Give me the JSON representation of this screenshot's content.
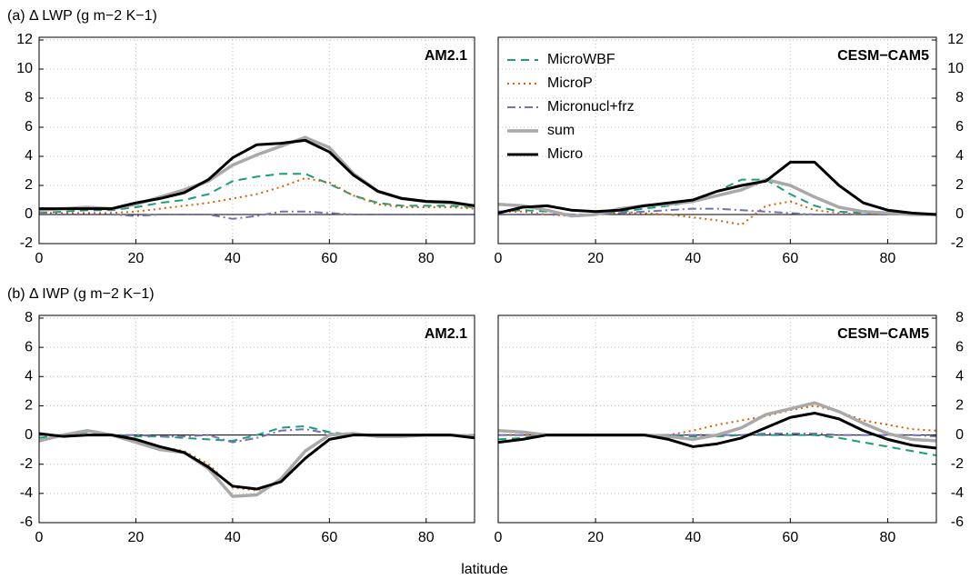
{
  "figure": {
    "xlabel": "latitude"
  },
  "chart_data": [
    {
      "type": "line",
      "title": "(a) Δ LWP (g m−2 K−1)",
      "label": "AM2.1",
      "yaxis_side": "left",
      "grid": true,
      "xlim": [
        0,
        90
      ],
      "xticks": [
        0,
        20,
        40,
        60,
        80
      ],
      "ylim": [
        -2,
        12
      ],
      "yticks": [
        -2,
        0,
        2,
        4,
        6,
        8,
        10,
        12
      ],
      "x": [
        0,
        5,
        10,
        15,
        20,
        25,
        30,
        35,
        40,
        45,
        50,
        55,
        60,
        65,
        70,
        75,
        80,
        85,
        90
      ],
      "series": [
        {
          "name": "MicroWBF",
          "color": "#1b9e77",
          "linestyle": "dashed",
          "width": 2,
          "values": [
            0.1,
            0.2,
            0.3,
            0.3,
            0.5,
            0.8,
            1.0,
            1.4,
            2.3,
            2.6,
            2.8,
            2.8,
            2.1,
            1.3,
            0.8,
            0.6,
            0.6,
            0.6,
            0.5
          ]
        },
        {
          "name": "MicroP",
          "color": "#d95f02",
          "linestyle": "dotted",
          "width": 2,
          "values": [
            0.1,
            0.1,
            0.1,
            0.1,
            0.2,
            0.4,
            0.6,
            0.8,
            1.1,
            1.4,
            1.9,
            2.5,
            2.2,
            1.3,
            0.7,
            0.5,
            0.5,
            0.5,
            0.4
          ]
        },
        {
          "name": "Micronucl+frz",
          "color": "#7570b3",
          "linestyle": "dashdot",
          "width": 2,
          "values": [
            0.0,
            0.0,
            0.0,
            0.0,
            -0.1,
            0.0,
            0.0,
            0.0,
            -0.3,
            -0.1,
            0.2,
            0.2,
            0.1,
            0.0,
            0.0,
            0.0,
            0.0,
            0.0,
            0.0
          ]
        },
        {
          "name": "sum",
          "color": "#a9a9a9",
          "linestyle": "solid",
          "width": 3.5,
          "values": [
            0.3,
            0.4,
            0.5,
            0.4,
            0.7,
            1.2,
            1.7,
            2.3,
            3.4,
            4.1,
            4.7,
            5.3,
            4.6,
            2.8,
            1.6,
            1.1,
            0.9,
            0.8,
            0.6
          ]
        },
        {
          "name": "Micro",
          "color": "#000000",
          "linestyle": "solid",
          "width": 3,
          "values": [
            0.4,
            0.4,
            0.4,
            0.4,
            0.8,
            1.1,
            1.5,
            2.4,
            3.9,
            4.8,
            4.9,
            5.1,
            4.3,
            2.7,
            1.6,
            1.1,
            0.9,
            0.85,
            0.6
          ]
        }
      ]
    },
    {
      "type": "line",
      "label": "CESM−CAM5",
      "yaxis_side": "right",
      "grid": true,
      "legend": "upper left",
      "xlim": [
        0,
        90
      ],
      "xticks": [
        0,
        20,
        40,
        60,
        80
      ],
      "ylim": [
        -2,
        12
      ],
      "yticks": [
        -2,
        0,
        2,
        4,
        6,
        8,
        10,
        12
      ],
      "x": [
        0,
        5,
        10,
        15,
        20,
        25,
        30,
        35,
        40,
        45,
        50,
        55,
        60,
        65,
        70,
        75,
        80,
        85,
        90
      ],
      "series": [
        {
          "name": "MicroWBF",
          "color": "#1b9e77",
          "linestyle": "dashed",
          "width": 2,
          "values": [
            0.2,
            0.3,
            0.2,
            0.0,
            0.0,
            0.2,
            0.4,
            0.6,
            0.9,
            1.6,
            2.4,
            2.4,
            1.4,
            0.6,
            0.2,
            0.1,
            0.0,
            0.0,
            0.0
          ]
        },
        {
          "name": "MicroP",
          "color": "#d95f02",
          "linestyle": "dotted",
          "width": 2,
          "values": [
            0.2,
            0.2,
            0.0,
            -0.1,
            0.0,
            0.1,
            0.1,
            0.0,
            -0.2,
            -0.4,
            -0.7,
            0.6,
            0.9,
            0.3,
            0.1,
            0.0,
            0.0,
            0.0,
            0.0
          ]
        },
        {
          "name": "Micronucl+frz",
          "color": "#7570b3",
          "linestyle": "dashdot",
          "width": 2,
          "values": [
            0.0,
            0.0,
            0.0,
            0.0,
            0.0,
            0.1,
            0.2,
            0.3,
            0.4,
            0.4,
            0.3,
            0.2,
            0.1,
            0.0,
            0.0,
            0.0,
            0.0,
            0.0,
            0.0
          ]
        },
        {
          "name": "sum",
          "color": "#a9a9a9",
          "linestyle": "solid",
          "width": 3.5,
          "values": [
            0.7,
            0.6,
            0.3,
            -0.1,
            0.0,
            0.4,
            0.6,
            0.7,
            0.9,
            1.3,
            1.7,
            2.4,
            2.0,
            1.2,
            0.5,
            0.2,
            0.1,
            0.0,
            0.0
          ]
        },
        {
          "name": "Micro",
          "color": "#000000",
          "linestyle": "solid",
          "width": 3,
          "values": [
            0.1,
            0.5,
            0.6,
            0.3,
            0.2,
            0.3,
            0.6,
            0.8,
            1.0,
            1.6,
            2.0,
            2.3,
            3.6,
            3.6,
            2.0,
            0.8,
            0.3,
            0.1,
            0.0
          ]
        }
      ]
    },
    {
      "type": "line",
      "title": "(b) Δ IWP (g m−2 K−1)",
      "label": "AM2.1",
      "yaxis_side": "left",
      "grid": true,
      "xlim": [
        0,
        90
      ],
      "xticks": [
        0,
        20,
        40,
        60,
        80
      ],
      "ylim": [
        -6,
        8
      ],
      "yticks": [
        -6,
        -4,
        -2,
        0,
        2,
        4,
        6,
        8
      ],
      "x": [
        0,
        5,
        10,
        15,
        20,
        25,
        30,
        35,
        40,
        45,
        50,
        55,
        60,
        65,
        70,
        75,
        80,
        85,
        90
      ],
      "series": [
        {
          "name": "MicroWBF",
          "color": "#1b9e77",
          "linestyle": "dashed",
          "width": 2,
          "values": [
            -0.2,
            0.0,
            0.2,
            0.0,
            -0.1,
            -0.1,
            -0.2,
            -0.3,
            -0.4,
            0.0,
            0.5,
            0.6,
            0.2,
            0.0,
            0.0,
            0.0,
            0.0,
            0.0,
            0.0
          ]
        },
        {
          "name": "MicroP",
          "color": "#d95f02",
          "linestyle": "dotted",
          "width": 2,
          "values": [
            0.0,
            -0.1,
            0.0,
            0.0,
            -0.3,
            -0.8,
            -1.1,
            -2.0,
            -3.6,
            -3.8,
            -3.2,
            -1.6,
            -0.3,
            0.0,
            0.0,
            0.0,
            0.0,
            0.0,
            0.0
          ]
        },
        {
          "name": "Micronucl+frz",
          "color": "#7570b3",
          "linestyle": "dashdot",
          "width": 2,
          "values": [
            0.0,
            0.0,
            0.0,
            0.0,
            0.0,
            -0.1,
            -0.1,
            0.0,
            -0.5,
            -0.2,
            0.3,
            0.4,
            0.1,
            0.0,
            0.0,
            0.0,
            0.0,
            0.0,
            0.0
          ]
        },
        {
          "name": "sum",
          "color": "#a9a9a9",
          "linestyle": "solid",
          "width": 3.5,
          "values": [
            -0.4,
            0.0,
            0.3,
            0.0,
            -0.5,
            -1.0,
            -1.2,
            -2.3,
            -4.2,
            -4.1,
            -3.0,
            -1.1,
            0.0,
            0.1,
            -0.1,
            -0.1,
            0.0,
            0.0,
            -0.1
          ]
        },
        {
          "name": "Micro",
          "color": "#000000",
          "linestyle": "solid",
          "width": 3,
          "values": [
            0.1,
            -0.1,
            0.0,
            0.0,
            -0.3,
            -0.8,
            -1.2,
            -2.2,
            -3.5,
            -3.7,
            -3.2,
            -1.6,
            -0.3,
            0.0,
            0.0,
            0.0,
            0.0,
            0.0,
            -0.2
          ]
        }
      ]
    },
    {
      "type": "line",
      "label": "CESM−CAM5",
      "yaxis_side": "right",
      "grid": true,
      "xlim": [
        0,
        90
      ],
      "xticks": [
        0,
        20,
        40,
        60,
        80
      ],
      "ylim": [
        -6,
        8
      ],
      "yticks": [
        -6,
        -4,
        -2,
        0,
        2,
        4,
        6,
        8
      ],
      "x": [
        0,
        5,
        10,
        15,
        20,
        25,
        30,
        35,
        40,
        45,
        50,
        55,
        60,
        65,
        70,
        75,
        80,
        85,
        90
      ],
      "series": [
        {
          "name": "MicroWBF",
          "color": "#1b9e77",
          "linestyle": "dashed",
          "width": 2,
          "values": [
            -0.3,
            -0.2,
            0.0,
            0.0,
            0.0,
            0.0,
            0.0,
            0.0,
            -0.1,
            -0.1,
            0.0,
            0.0,
            0.0,
            0.0,
            -0.2,
            -0.5,
            -0.8,
            -1.1,
            -1.4
          ]
        },
        {
          "name": "MicroP",
          "color": "#d95f02",
          "linestyle": "dotted",
          "width": 2,
          "values": [
            0.0,
            0.0,
            0.0,
            0.0,
            0.0,
            0.0,
            0.0,
            0.0,
            0.3,
            0.7,
            1.0,
            1.3,
            1.7,
            2.0,
            1.6,
            1.0,
            0.7,
            0.4,
            0.3
          ]
        },
        {
          "name": "Micronucl+frz",
          "color": "#7570b3",
          "linestyle": "dashdot",
          "width": 2,
          "values": [
            0.0,
            0.0,
            0.0,
            0.0,
            0.0,
            0.0,
            0.0,
            0.0,
            0.0,
            0.0,
            0.0,
            0.1,
            0.1,
            0.1,
            0.0,
            0.0,
            0.0,
            0.0,
            -0.1
          ]
        },
        {
          "name": "sum",
          "color": "#a9a9a9",
          "linestyle": "solid",
          "width": 3.5,
          "values": [
            0.3,
            0.2,
            0.0,
            0.0,
            0.0,
            0.0,
            0.0,
            -0.1,
            -0.3,
            0.0,
            0.5,
            1.4,
            1.8,
            2.2,
            1.6,
            0.8,
            0.1,
            -0.3,
            -0.4
          ]
        },
        {
          "name": "Micro",
          "color": "#000000",
          "linestyle": "solid",
          "width": 3,
          "values": [
            -0.5,
            -0.3,
            0.0,
            0.0,
            0.0,
            0.0,
            0.0,
            -0.3,
            -0.8,
            -0.6,
            -0.2,
            0.5,
            1.2,
            1.5,
            1.1,
            0.3,
            -0.3,
            -0.7,
            -0.9
          ]
        }
      ]
    }
  ]
}
